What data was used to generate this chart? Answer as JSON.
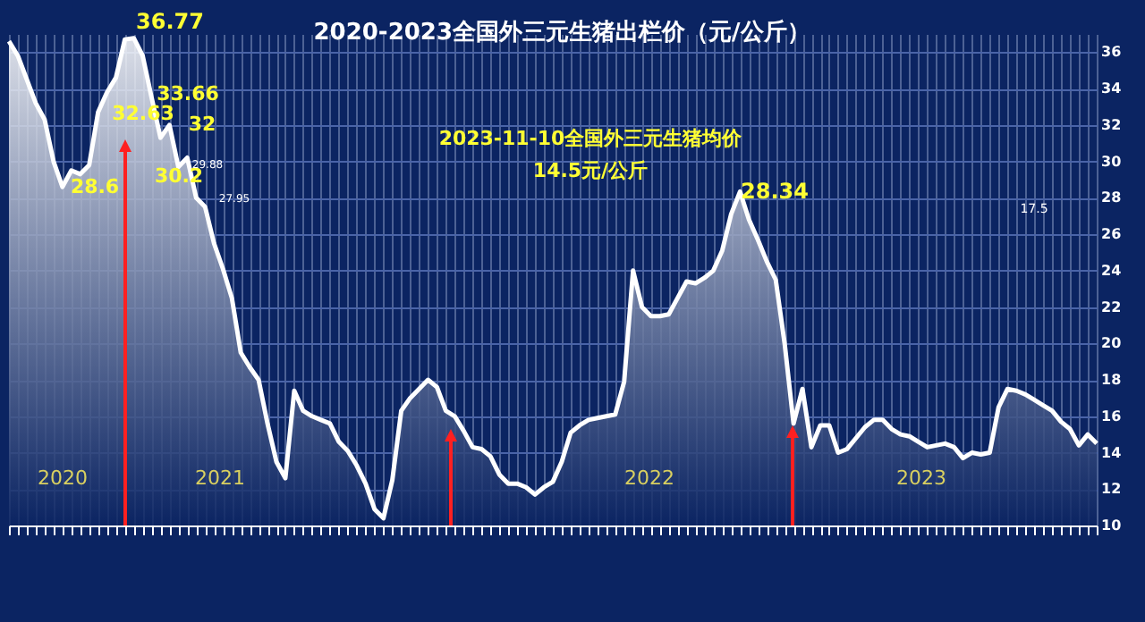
{
  "chart_data": {
    "type": "area",
    "title": "2020-2023全国外三元生猪出栏价（元/公斤）",
    "categories": [
      null,
      null,
      null,
      null,
      null,
      null,
      null,
      null,
      null,
      null,
      null,
      null,
      null,
      null,
      null,
      null,
      null,
      null,
      null,
      null,
      null,
      null,
      null,
      null,
      null,
      null,
      null,
      null,
      null,
      null,
      null,
      null,
      null,
      null,
      null,
      null,
      null,
      null,
      null,
      null,
      null,
      null,
      null,
      null,
      null,
      null,
      null,
      null,
      null,
      null,
      null,
      null,
      null,
      null,
      null,
      null,
      null,
      null,
      null,
      null,
      null,
      null,
      null,
      null,
      null,
      null,
      null,
      null,
      null,
      null,
      null,
      null,
      null,
      null,
      null,
      null,
      null,
      null,
      null,
      null,
      null,
      null,
      null,
      null,
      null,
      null,
      null,
      null,
      null,
      null,
      null,
      null,
      null,
      null,
      null,
      null,
      null,
      null,
      null,
      null,
      null,
      null,
      null,
      null,
      null,
      null,
      null,
      null,
      null,
      null,
      null,
      null,
      null,
      null,
      null,
      null,
      null,
      null,
      null,
      null,
      null,
      null,
      null
    ],
    "series": [
      {
        "color": "#ffffff",
        "values": [
          36.6,
          35.8,
          34.5,
          33.2,
          32.3,
          30.0,
          28.6,
          29.5,
          29.3,
          29.8,
          32.7,
          33.8,
          34.6,
          36.7,
          36.77,
          35.8,
          33.5,
          31.3,
          32.0,
          29.7,
          30.2,
          28.0,
          27.5,
          25.5,
          24.1,
          22.5,
          19.5,
          18.7,
          18.0,
          15.6,
          13.5,
          12.6,
          17.4,
          16.3,
          16.0,
          15.8,
          15.6,
          14.6,
          14.1,
          13.3,
          12.3,
          10.9,
          10.4,
          12.5,
          16.3,
          17.0,
          17.5,
          18.0,
          17.6,
          16.3,
          16.0,
          15.2,
          14.3,
          14.2,
          13.8,
          12.8,
          12.3,
          12.3,
          12.1,
          11.7,
          12.1,
          12.4,
          13.5,
          15.1,
          15.5,
          15.8,
          15.9,
          16.0,
          16.1,
          17.9,
          24.0,
          22.0,
          21.5,
          21.5,
          21.6,
          22.5,
          23.4,
          23.3,
          23.6,
          24.0,
          25.1,
          27.1,
          28.34,
          26.8,
          25.7,
          24.5,
          23.5,
          20.0,
          15.6,
          17.5,
          14.3,
          15.5,
          15.5,
          14.0,
          14.2,
          14.8,
          15.4,
          15.8,
          15.8,
          15.3,
          15.0,
          14.9,
          14.6,
          14.3,
          14.4,
          14.5,
          14.3,
          13.7,
          14.0,
          13.9,
          14.0,
          16.5,
          17.5,
          17.4,
          17.2,
          16.9,
          16.6,
          16.3,
          15.7,
          15.3,
          14.4,
          15.0,
          14.5
        ]
      }
    ],
    "ylim": [
      10,
      37
    ],
    "yticks": [
      10,
      12,
      14,
      16,
      18,
      20,
      22,
      24,
      26,
      28,
      30,
      32,
      34,
      36
    ],
    "grid": true,
    "tick_labels": "y",
    "annotations": [
      "36.77",
      "33.66",
      "32.63",
      "32",
      "30.2",
      "28.6",
      "29.88",
      "27.95",
      "2023-11-10全国外三元生猪均价",
      "14.5元/公斤",
      "28.34",
      "17.5",
      "2020",
      "2021",
      "2022",
      "2023"
    ]
  }
}
